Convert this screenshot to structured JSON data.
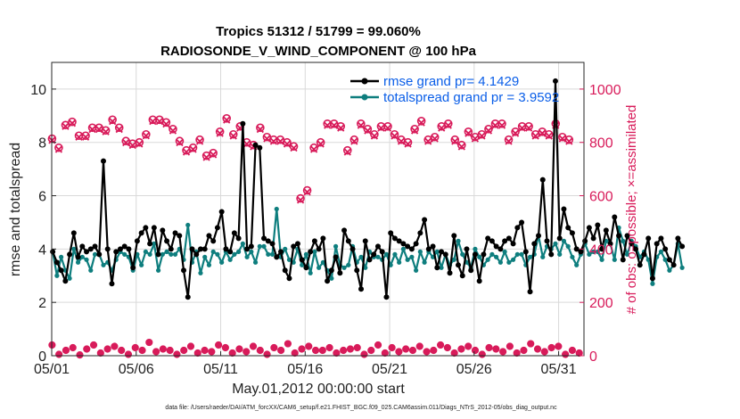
{
  "chart_data": {
    "type": "line",
    "title_line1": "Tropics 51312 / 51799 = 99.060%",
    "title_line2": "RADIOSONDE_V_WIND_COMPONENT @ 100 hPa",
    "xlabel": "May.01,2012 00:00:00 start",
    "ylabel_left": "rmse and totalspread",
    "ylabel_right": "# of obs: o=possible; ×=assimilated",
    "xlim": [
      0,
      31.5
    ],
    "ylim_left": [
      0,
      11
    ],
    "ylim_right": [
      0,
      1100
    ],
    "x_ticks": [
      {
        "x": 0,
        "label": "05/01"
      },
      {
        "x": 5,
        "label": "05/06"
      },
      {
        "x": 10,
        "label": "05/11"
      },
      {
        "x": 15,
        "label": "05/16"
      },
      {
        "x": 20,
        "label": "05/21"
      },
      {
        "x": 25,
        "label": "05/26"
      },
      {
        "x": 30,
        "label": "05/31"
      }
    ],
    "y_ticks_left": [
      0,
      2,
      4,
      6,
      8,
      10
    ],
    "y_ticks_right": [
      0,
      200,
      400,
      600,
      800,
      1000
    ],
    "x_step_days": 0.25,
    "grid": true,
    "legend_position": "top-right",
    "series": [
      {
        "name": "rmse grand pr",
        "legend_label": "rmse grand pr= 4.1429",
        "color": "#000000",
        "axis": "left",
        "values": [
          3.9,
          3.5,
          3.2,
          2.8,
          3.8,
          4.6,
          3.7,
          4.1,
          3.9,
          4.0,
          4.1,
          3.8,
          7.3,
          4.0,
          2.7,
          3.9,
          4.0,
          4.1,
          4.0,
          3.3,
          4.3,
          4.6,
          4.8,
          4.2,
          4.8,
          3.8,
          4.7,
          4.3,
          4.0,
          4.6,
          4.5,
          3.2,
          2.2,
          4.0,
          3.8,
          4.0,
          4.0,
          4.5,
          4.3,
          4.8,
          5.4,
          4.0,
          3.9,
          4.6,
          4.4,
          8.7,
          4.0,
          4.1,
          7.9,
          7.8,
          4.4,
          4.3,
          4.2,
          3.7,
          3.9,
          3.2,
          2.9,
          4.1,
          4.2,
          3.6,
          3.3,
          3.9,
          4.3,
          4.0,
          4.4,
          2.8,
          3.2,
          3.7,
          3.1,
          4.7,
          4.3,
          4.0,
          3.2,
          2.5,
          4.3,
          3.6,
          3.8,
          4.1,
          3.9,
          2.2,
          4.6,
          4.4,
          4.3,
          4.2,
          4.1,
          4.0,
          4.2,
          4.6,
          5.1,
          4.0,
          4.1,
          3.3,
          3.9,
          3.8,
          3.1,
          4.5,
          3.4,
          3.0,
          4.0,
          3.2,
          3.8,
          2.8,
          3.8,
          4.4,
          4.3,
          4.1,
          4.0,
          4.3,
          4.4,
          4.2,
          4.8,
          5.0,
          3.9,
          2.4,
          4.2,
          4.5,
          6.6,
          4.3,
          3.8,
          10.3,
          4.4,
          5.5,
          4.8,
          4.6,
          4.0,
          3.9,
          4.3,
          4.8,
          4.4,
          4.9,
          4.0,
          4.7,
          4.2,
          5.2,
          4.5,
          3.6,
          4.5,
          4.2,
          4.0,
          3.4,
          3.8,
          4.4,
          2.9,
          4.2,
          4.4,
          4.0,
          3.6,
          3.4,
          4.4,
          4.1
        ],
        "colors_note": "black line with star markers"
      },
      {
        "name": "totalspread grand pr",
        "legend_label": "totalspread grand pr = 3.9592",
        "color": "#0e7e7e",
        "axis": "left",
        "values": [
          3.9,
          3.0,
          3.7,
          3.2,
          2.9,
          4.0,
          3.5,
          3.7,
          3.6,
          3.2,
          3.8,
          3.8,
          3.4,
          3.5,
          3.2,
          3.6,
          3.9,
          3.8,
          3.7,
          3.2,
          3.8,
          3.4,
          3.9,
          3.8,
          4.2,
          3.2,
          3.8,
          3.9,
          3.8,
          3.8,
          4.0,
          3.6,
          4.9,
          3.5,
          3.9,
          3.1,
          3.7,
          3.4,
          3.9,
          3.8,
          3.5,
          3.9,
          3.6,
          3.8,
          3.9,
          4.2,
          3.7,
          3.9,
          3.5,
          4.1,
          4.1,
          3.8,
          3.8,
          5.5,
          3.7,
          4.0,
          3.6,
          3.5,
          4.0,
          3.4,
          3.8,
          3.1,
          3.9,
          3.3,
          3.5,
          3.2,
          2.9,
          4.1,
          3.4,
          3.3,
          3.4,
          4.1,
          3.5,
          3.7,
          3.3,
          3.9,
          3.7,
          3.7,
          3.6,
          3.8,
          3.4,
          3.8,
          3.5,
          4.0,
          3.6,
          3.7,
          3.2,
          3.9,
          3.5,
          3.9,
          3.7,
          3.9,
          3.3,
          3.8,
          3.4,
          3.6,
          4.3,
          3.8,
          3.5,
          3.3,
          4.0,
          3.7,
          3.4,
          3.6,
          3.8,
          3.7,
          3.5,
          3.9,
          3.5,
          3.6,
          3.8,
          3.8,
          3.4,
          3.7,
          3.8,
          4.5,
          3.7,
          4.1,
          4.0,
          4.2,
          3.8,
          4.3,
          4.1,
          3.7,
          3.4,
          3.8,
          4.2,
          3.8,
          3.9,
          3.9,
          3.6,
          4.3,
          4.2,
          3.6,
          4.8,
          4.3,
          3.8,
          4.3,
          4.1,
          3.7,
          3.9,
          3.6,
          2.7,
          3.7,
          3.9,
          3.6,
          3.2,
          3.4,
          4.2,
          3.3
        ]
      },
      {
        "name": "obs possible",
        "color": "#d81b5a",
        "axis": "right",
        "marker": "circle",
        "values": [
          814,
          780,
          865,
          877,
          825,
          825,
          855,
          855,
          845,
          885,
          855,
          805,
          795,
          800,
          830,
          885,
          885,
          875,
          850,
          805,
          770,
          780,
          810,
          750,
          760,
          840,
          890,
          830,
          860,
          800,
          790,
          855,
          820,
          810,
          810,
          800,
          785,
          590,
          620,
          780,
          800,
          870,
          870,
          860,
          770,
          810,
          870,
          850,
          830,
          860,
          860,
          830,
          810,
          800,
          850,
          880,
          810,
          820,
          860,
          870,
          810,
          790,
          840,
          820,
          830,
          850,
          870,
          870,
          810,
          840,
          860,
          860,
          830,
          840,
          830,
          870,
          820,
          810
        ]
      },
      {
        "name": "obs assimilated",
        "color": "#d81b5a",
        "axis": "right",
        "marker": "x",
        "values": [
          808,
          774,
          860,
          872,
          820,
          820,
          849,
          849,
          840,
          879,
          849,
          799,
          789,
          794,
          825,
          879,
          879,
          869,
          844,
          799,
          764,
          774,
          804,
          744,
          754,
          834,
          884,
          824,
          854,
          794,
          784,
          849,
          814,
          804,
          804,
          794,
          779,
          584,
          614,
          774,
          794,
          864,
          864,
          854,
          764,
          804,
          864,
          844,
          824,
          854,
          854,
          824,
          804,
          794,
          844,
          874,
          804,
          814,
          854,
          864,
          804,
          784,
          834,
          814,
          824,
          844,
          864,
          864,
          804,
          834,
          854,
          854,
          824,
          834,
          824,
          864,
          814,
          804
        ]
      },
      {
        "name": "obs rejected low",
        "color": "#d81b5a",
        "axis": "right",
        "marker": "star",
        "values": [
          40,
          5,
          20,
          30,
          3,
          25,
          40,
          10,
          25,
          35,
          20,
          5,
          30,
          20,
          50,
          15,
          25,
          20,
          5,
          20,
          35,
          10,
          20,
          15,
          40,
          30,
          10,
          25,
          15,
          35,
          20,
          5,
          30,
          20,
          45,
          10,
          25,
          35,
          20,
          20,
          30,
          10,
          20,
          25,
          30,
          5,
          20,
          40,
          10,
          30,
          15,
          25,
          20,
          35,
          15,
          20,
          40,
          30,
          10,
          25,
          35,
          20,
          5,
          30,
          25,
          15,
          35,
          10,
          20,
          45,
          25,
          15,
          30,
          35,
          5,
          20,
          10
        ]
      }
    ]
  },
  "footer": "data file: /Users/raeder/DAI/ATM_forcXX/CAM6_setup/f.e21.FHIST_BGC.f09_025.CAM6assim.011/Diags_NTrS_2012-05/obs_diag_output.nc"
}
